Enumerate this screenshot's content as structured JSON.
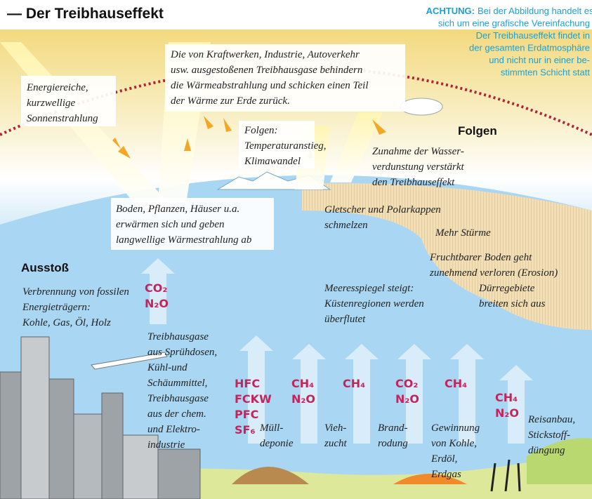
{
  "header": {
    "title": "— Der Treibhauseffekt",
    "notice_label": "ACHTUNG:",
    "notice_lines": [
      "Bei der Abbildung handelt es",
      "sich um eine grafische Vereinfachung",
      "Der Treibhauseffekt findet in",
      "der gesamten Erdatmosphäre",
      "und nicht nur in einer be-",
      "stimmten Schicht statt"
    ]
  },
  "annotations": {
    "sun": [
      "Energiereiche,",
      "kurzwellige",
      "Sonnenstrahlung"
    ],
    "greenhouse": [
      "Die von Kraftwerken, Industrie, Autoverkehr",
      "usw. ausgestoßenen Treibhausgase behindern",
      "die Wärmeabstrahlung und schicken einen Teil",
      "der Wärme zur Erde zurück."
    ],
    "consequence_summary": [
      "Folgen:",
      "Temperaturanstieg,",
      "Klimawandel"
    ],
    "ground": [
      "Boden, Pflanzen, Häuser u.a.",
      "erwärmen sich und geben",
      "langwellige Wärmestrahlung ab"
    ]
  },
  "consequences": {
    "heading": "Folgen",
    "items": [
      [
        "Zunahme der Wasser-",
        "verdunstung verstärkt",
        "den Treibhauseffekt"
      ],
      [
        "Gletscher und Polarkappen",
        "schmelzen"
      ],
      [
        "Mehr Stürme"
      ],
      [
        "Fruchtbarer Boden geht",
        "zunehmend verloren (Erosion)"
      ],
      [
        "Dürregebiete",
        "breiten sich aus"
      ],
      [
        "Meeresspiegel steigt:",
        "Küstenregionen werden",
        "überflutet"
      ]
    ]
  },
  "emissions": {
    "heading": "Ausstoß",
    "sources": [
      {
        "text": [
          "Verbrennung von fossilen",
          "Energieträgern:",
          "Kohle, Gas, Öl, Holz"
        ],
        "gases": [
          "CO₂",
          "N₂O"
        ]
      },
      {
        "text": [
          "Treibhausgase",
          "aus Sprühdosen,",
          "Kühl-und",
          "Schäummittel,",
          "Treibhausgase",
          "aus der chem.",
          "und Elektro-",
          "industrie"
        ],
        "gases": [
          "HFC",
          "FCKW",
          "PFC",
          "SF₆"
        ]
      },
      {
        "text": [
          "Müll-",
          "deponie"
        ],
        "gases": [
          "CH₄",
          "N₂O"
        ]
      },
      {
        "text": [
          "Vieh-",
          "zucht"
        ],
        "gases": [
          "CH₄"
        ]
      },
      {
        "text": [
          "Brand-",
          "rodung"
        ],
        "gases": [
          "CO₂",
          "N₂O"
        ]
      },
      {
        "text": [
          "Gewinnung",
          "von Kohle,",
          "Erdöl,",
          "Erdgas"
        ],
        "gases": [
          "CH₄"
        ]
      },
      {
        "text": [
          "Reisanbau,",
          "Stickstoff-",
          "düngung"
        ],
        "gases": [
          "CH₄",
          "N₂O"
        ]
      }
    ]
  }
}
